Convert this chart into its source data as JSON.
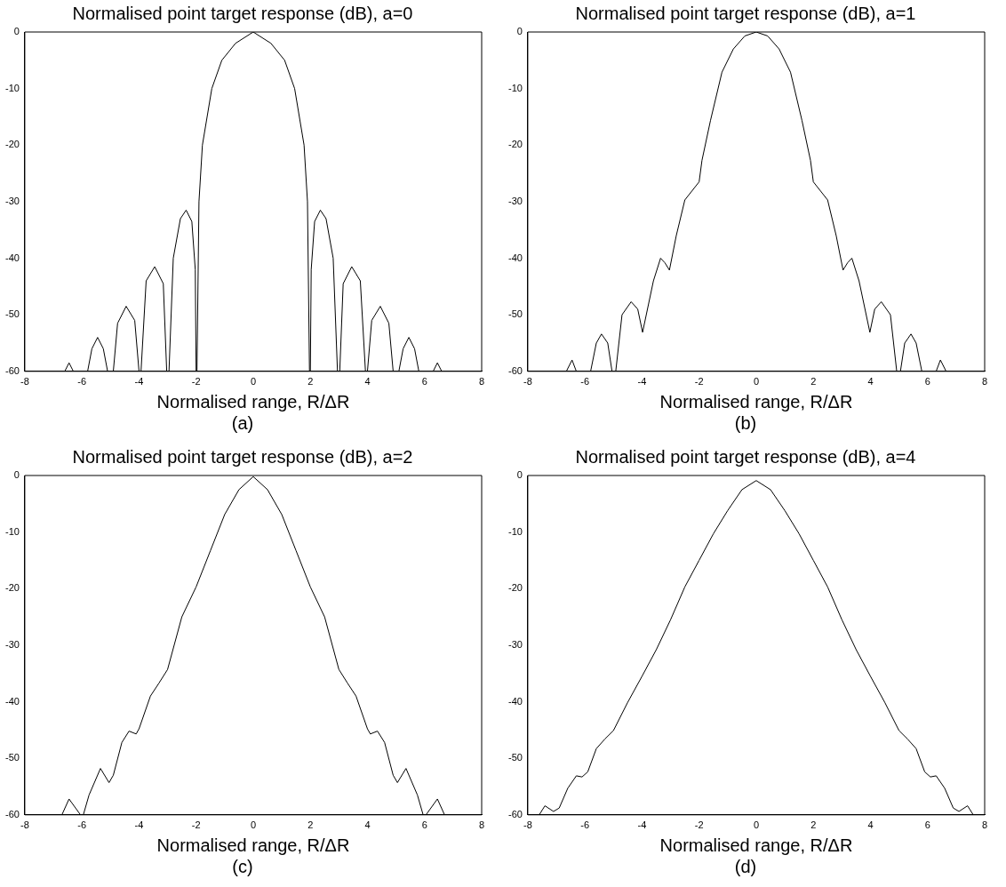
{
  "chart_data": [
    {
      "type": "line",
      "title": "Normalised point target response (dB), a=0",
      "xlabel": "Normalised range, R/ΔR",
      "annotations": [
        "(a)"
      ],
      "xlim": [
        -8,
        8
      ],
      "xticks": [
        -8,
        -6,
        -4,
        -2,
        0,
        2,
        4,
        6,
        8
      ],
      "ylim": [
        -60,
        0
      ],
      "yticks": [
        -60,
        -50,
        -40,
        -30,
        -20,
        -10,
        0
      ],
      "marker": "none",
      "series": [
        {
          "color": "#000000",
          "x": [
            -6.6,
            -6.45,
            -6.3,
            -6.0,
            -5.8,
            -5.65,
            -5.45,
            -5.25,
            -5.1,
            -5.0,
            -4.9,
            -4.75,
            -4.45,
            -4.15,
            -4.0,
            -3.97,
            -3.93,
            -3.75,
            -3.45,
            -3.15,
            -3.03,
            -3.0,
            -2.95,
            -2.8,
            -2.55,
            -2.35,
            -2.15,
            -2.03,
            -2.0,
            -1.99,
            -1.97,
            -1.9,
            -1.78,
            -1.45,
            -1.1,
            -0.62,
            0,
            0.62,
            1.1,
            1.45,
            1.78,
            1.9,
            1.97,
            1.99,
            2.0,
            2.03,
            2.15,
            2.35,
            2.55,
            2.8,
            2.95,
            3.0,
            3.03,
            3.15,
            3.45,
            3.75,
            3.93,
            3.97,
            4.0,
            4.15,
            4.45,
            4.75,
            4.9,
            5.0,
            5.1,
            5.25,
            5.45,
            5.65,
            5.8,
            6.0,
            6.3,
            6.45,
            6.6
          ],
          "values": [
            -60,
            -58.5,
            -60,
            null,
            -60,
            -56,
            -54,
            -56,
            -60,
            null,
            -60,
            -51.5,
            -48.5,
            -51,
            -60,
            null,
            -60,
            -44,
            -41.5,
            -44.5,
            -60,
            null,
            -60,
            -40,
            -33,
            -31.5,
            -33.5,
            -42,
            -60,
            null,
            -60,
            -30,
            -20,
            -10,
            -5,
            -2,
            0,
            -2,
            -5,
            -10,
            -20,
            -30,
            -60,
            null,
            -60,
            -42,
            -33.5,
            -31.5,
            -33,
            -40,
            -60,
            null,
            -60,
            -44.5,
            -41.5,
            -44,
            -60,
            null,
            -60,
            -51,
            -48.5,
            -51.5,
            -60,
            null,
            -60,
            -56,
            -54,
            -56,
            -60,
            null,
            -60,
            -58.5,
            -60
          ]
        }
      ]
    },
    {
      "type": "line",
      "title": "Normalised point target response (dB), a=1",
      "xlabel": "Normalised range, R/ΔR",
      "annotations": [
        "(b)"
      ],
      "xlim": [
        -8,
        8
      ],
      "xticks": [
        -8,
        -6,
        -4,
        -2,
        0,
        2,
        4,
        6,
        8
      ],
      "ylim": [
        -60,
        0
      ],
      "yticks": [
        -60,
        -50,
        -40,
        -30,
        -20,
        -10,
        0
      ],
      "marker": "none",
      "series": [
        {
          "color": "#000000",
          "x": [
            -6.65,
            -6.45,
            -6.3,
            -6.0,
            -5.8,
            -5.6,
            -5.42,
            -5.2,
            -5.05,
            -5.0,
            -4.92,
            -4.7,
            -4.38,
            -4.15,
            -3.98,
            -3.6,
            -3.35,
            -3.2,
            -3.04,
            -2.8,
            -2.5,
            -2.0,
            -1.9,
            -1.6,
            -1.2,
            -0.8,
            -0.4,
            0,
            0.4,
            0.8,
            1.2,
            1.6,
            1.9,
            2.0,
            2.5,
            2.8,
            3.04,
            3.2,
            3.35,
            3.6,
            3.98,
            4.15,
            4.38,
            4.7,
            4.92,
            5.0,
            5.05,
            5.2,
            5.42,
            5.6,
            5.8,
            6.0,
            6.3,
            6.45,
            6.65
          ],
          "values": [
            -60,
            -58,
            -60,
            null,
            -60,
            -55,
            -53.4,
            -55,
            -60,
            null,
            -60,
            -50,
            -47.7,
            -49,
            -53.1,
            -44,
            -40,
            -40.8,
            -42.1,
            -36,
            -29.7,
            -26.5,
            -22.7,
            -15.6,
            -7.1,
            -3,
            -0.7,
            0,
            -0.7,
            -3,
            -7.1,
            -15.6,
            -22.7,
            -26.5,
            -29.7,
            -36,
            -42.1,
            -40.8,
            -40,
            -44,
            -53.1,
            -49,
            -47.7,
            -50,
            -60,
            null,
            -60,
            -55,
            -53.4,
            -55,
            -60,
            null,
            -60,
            -58,
            -60
          ]
        }
      ]
    },
    {
      "type": "line",
      "title": "Normalised point target response (dB), a=2",
      "xlabel": "Normalised range, R/ΔR",
      "annotations": [
        "(c)"
      ],
      "xlim": [
        -8,
        8
      ],
      "xticks": [
        -8,
        -6,
        -4,
        -2,
        0,
        2,
        4,
        6,
        8
      ],
      "ylim": [
        -60,
        0
      ],
      "yticks": [
        -60,
        -50,
        -40,
        -30,
        -20,
        -10,
        0
      ],
      "marker": "none",
      "series": [
        {
          "color": "#000000",
          "x": [
            -6.7,
            -6.45,
            -6.05,
            -6.0,
            -5.95,
            -5.75,
            -5.35,
            -5.05,
            -4.9,
            -4.6,
            -4.35,
            -4.1,
            -4.0,
            -3.6,
            -3.3,
            -3.0,
            -2.5,
            -2.0,
            -1.5,
            -1.0,
            -0.5,
            0,
            0.5,
            1.0,
            1.5,
            2.0,
            2.5,
            3.0,
            3.3,
            3.6,
            4.0,
            4.1,
            4.35,
            4.6,
            4.9,
            5.05,
            5.35,
            5.75,
            5.95,
            6.0,
            6.05,
            6.45,
            6.7
          ],
          "values": [
            -60,
            -57.2,
            -60,
            null,
            -60,
            -56.5,
            -51.8,
            -54.3,
            -53,
            -47.2,
            -45.2,
            -45.7,
            -44.8,
            -39,
            -36.7,
            -34.3,
            -25,
            -19.7,
            -13.3,
            -6.9,
            -2.5,
            -0.2,
            -2.5,
            -6.9,
            -13.3,
            -19.7,
            -25,
            -34.3,
            -36.7,
            -39,
            -44.8,
            -45.7,
            -45.2,
            -47.2,
            -53,
            -54.3,
            -51.8,
            -56.5,
            -60,
            null,
            -60,
            -57.2,
            -60
          ]
        }
      ]
    },
    {
      "type": "line",
      "title": "Normalised point target response (dB), a=4",
      "xlabel": "Normalised range, R/ΔR",
      "annotations": [
        "(d)"
      ],
      "xlim": [
        -8,
        8
      ],
      "xticks": [
        -8,
        -6,
        -4,
        -2,
        0,
        2,
        4,
        6,
        8
      ],
      "ylim": [
        -60,
        0
      ],
      "yticks": [
        -60,
        -50,
        -40,
        -30,
        -20,
        -10,
        0
      ],
      "marker": "none",
      "series": [
        {
          "color": "#000000",
          "x": [
            -7.6,
            -7.4,
            -7.1,
            -6.9,
            -6.6,
            -6.3,
            -6.1,
            -5.9,
            -5.6,
            -5.3,
            -5.0,
            -4.5,
            -4.0,
            -3.5,
            -3.0,
            -2.5,
            -2.0,
            -1.5,
            -1.0,
            -0.5,
            0,
            0.5,
            1.0,
            1.5,
            2.0,
            2.5,
            3.0,
            3.5,
            4.0,
            4.5,
            5.0,
            5.3,
            5.6,
            5.9,
            6.1,
            6.3,
            6.6,
            6.9,
            7.1,
            7.4,
            7.6
          ],
          "values": [
            -60,
            -58.4,
            -59.4,
            -58.8,
            -55.3,
            -53.1,
            -53.3,
            -52.4,
            -48.3,
            -46.6,
            -45.1,
            -40.1,
            -35.5,
            -30.8,
            -25.5,
            -19.7,
            -15,
            -10.3,
            -6.2,
            -2.5,
            -0.9,
            -2.5,
            -6.2,
            -10.3,
            -15,
            -19.7,
            -25.5,
            -30.8,
            -35.5,
            -40.1,
            -45.1,
            -46.6,
            -48.3,
            -52.4,
            -53.3,
            -53.1,
            -55.3,
            -58.8,
            -59.4,
            -58.4,
            -60
          ]
        }
      ]
    }
  ]
}
